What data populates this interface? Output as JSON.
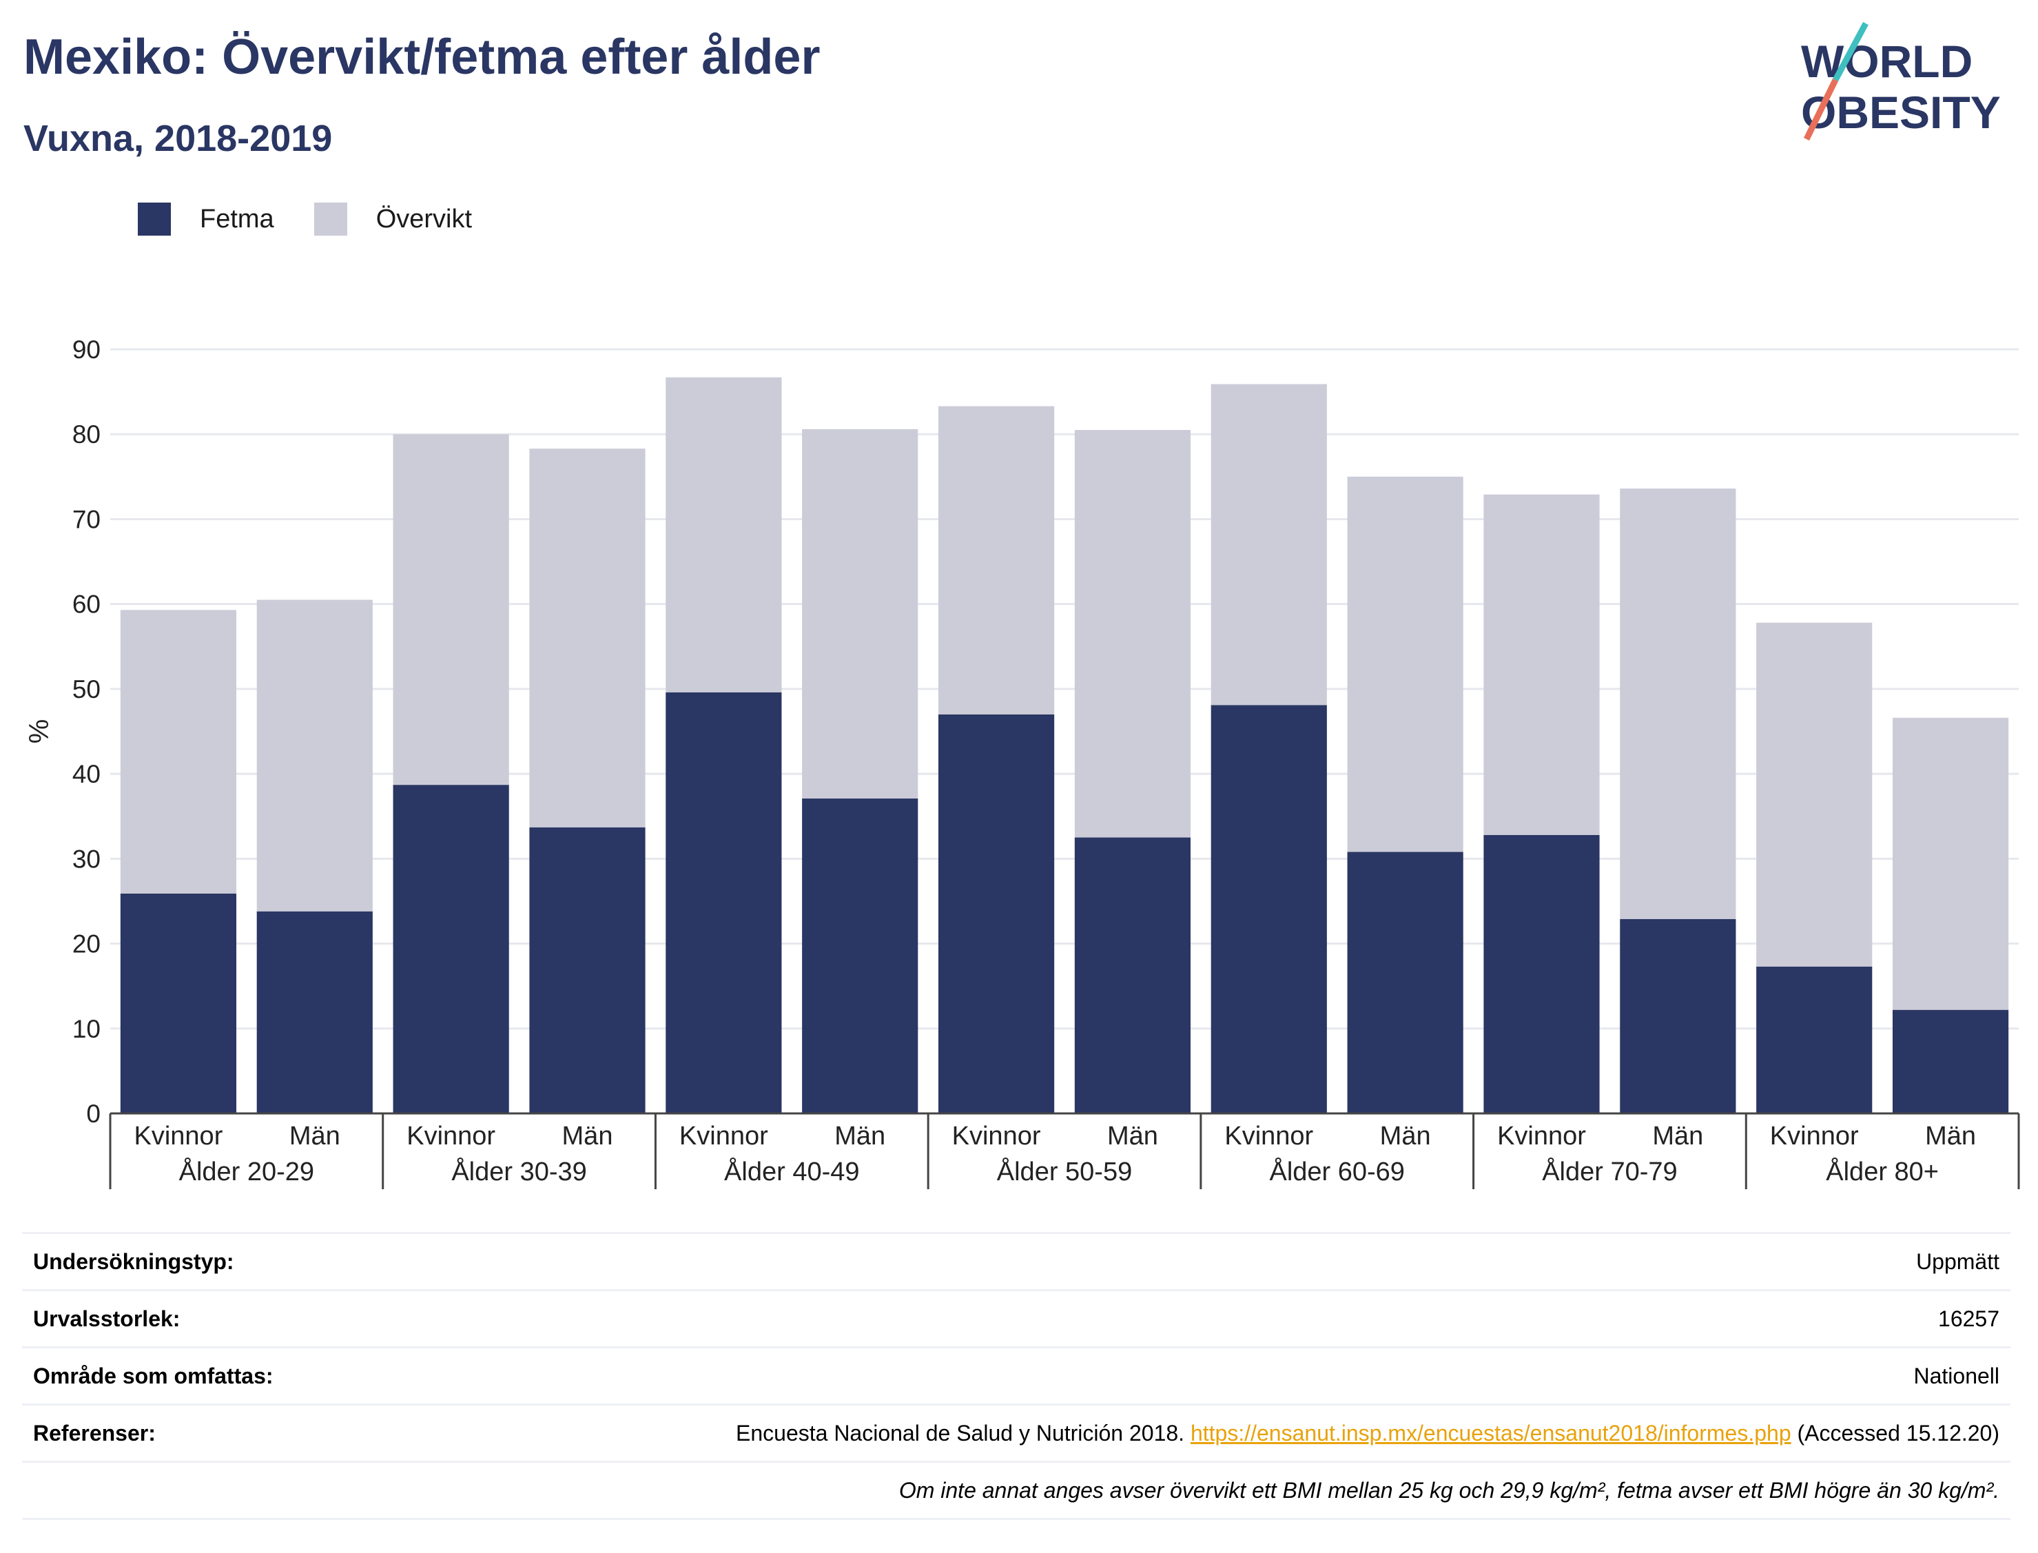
{
  "header": {
    "title": "Mexiko: Övervikt/fetma efter ålder",
    "subtitle": "Vuxna, 2018-2019"
  },
  "logo": {
    "line1": "WORLD",
    "line2": "OBESITY"
  },
  "colors": {
    "fetma": "#2a3663",
    "overvikt": "#cbccd8",
    "title": "#2a3663",
    "link": "#e8a20c",
    "logo_red": "#e8705a",
    "logo_teal": "#3fbfbf"
  },
  "legend": [
    {
      "label": "Fetma",
      "color": "#2a3663"
    },
    {
      "label": "Övervikt",
      "color": "#cbccd8"
    }
  ],
  "chart_data": {
    "type": "bar",
    "stacked": true,
    "ylabel": "%",
    "ylim": [
      0,
      90
    ],
    "yticks": [
      0,
      10,
      20,
      30,
      40,
      50,
      60,
      70,
      80,
      90
    ],
    "grid": true,
    "legend_position": "top-left",
    "groups": [
      "Ålder 20-29",
      "Ålder 30-39",
      "Ålder 40-49",
      "Ålder 50-59",
      "Ålder 60-69",
      "Ålder 70-79",
      "Ålder 80+"
    ],
    "categories": [
      "Kvinnor",
      "Män",
      "Kvinnor",
      "Män",
      "Kvinnor",
      "Män",
      "Kvinnor",
      "Män",
      "Kvinnor",
      "Män",
      "Kvinnor",
      "Män",
      "Kvinnor",
      "Män"
    ],
    "series": [
      {
        "name": "Fetma",
        "values": [
          25.9,
          23.8,
          38.7,
          33.7,
          49.6,
          37.1,
          47.0,
          32.5,
          48.1,
          30.8,
          32.8,
          22.9,
          17.3,
          12.2
        ]
      },
      {
        "name": "Övervikt",
        "values": [
          33.4,
          36.7,
          41.3,
          44.6,
          37.1,
          43.5,
          36.3,
          48.0,
          37.8,
          44.2,
          40.1,
          50.7,
          40.5,
          34.4
        ]
      }
    ]
  },
  "info": {
    "survey_type": {
      "label": "Undersökningstyp:",
      "value": "Uppmätt"
    },
    "sample_size": {
      "label": "Urvalsstorlek:",
      "value": "16257"
    },
    "coverage": {
      "label": "Område som omfattas:",
      "value": "Nationell"
    },
    "references": {
      "label": "Referenser:",
      "text": "Encuesta Nacional de Salud y Nutrición 2018.",
      "link": "https://ensanut.insp.mx/encuestas/ensanut2018/informes.php",
      "accessed": "(Accessed 15.12.20)"
    },
    "note": "Om inte annat anges avser övervikt ett BMI mellan 25 kg och 29,9 kg/m², fetma avser ett BMI högre än 30 kg/m²."
  }
}
